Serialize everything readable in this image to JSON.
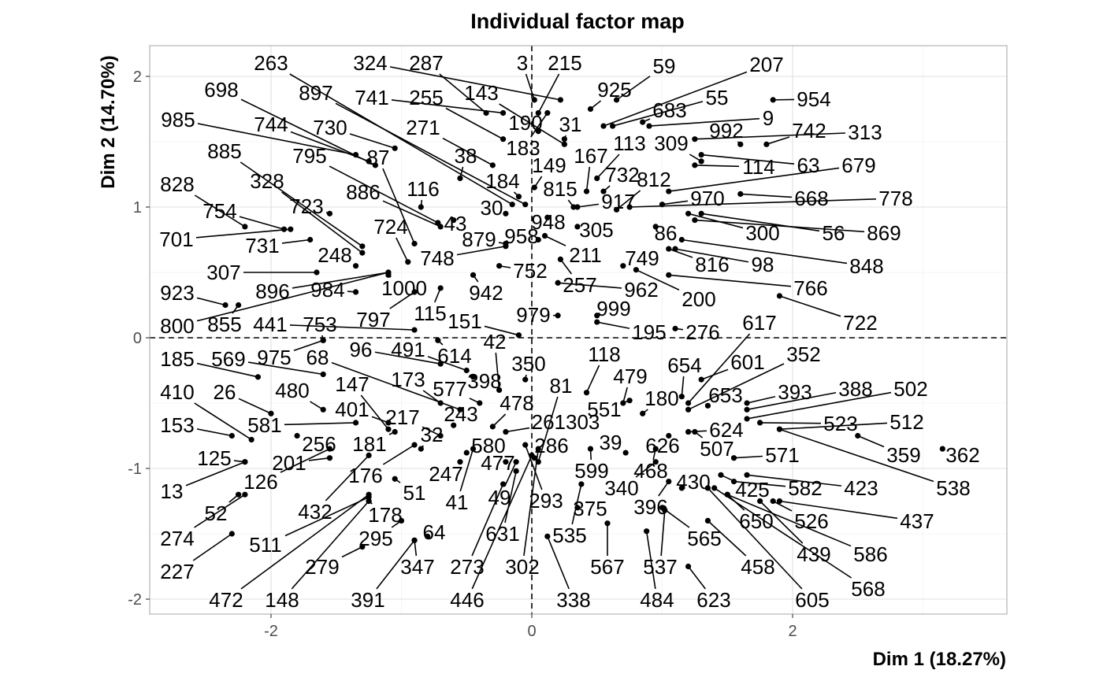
{
  "chart_data": {
    "type": "scatter",
    "title": "Individual factor map",
    "xlabel": "Dim 1 (18.27%)",
    "ylabel": "Dim 2 (14.70%)",
    "xlim": [
      -2.9,
      3.65
    ],
    "ylim": [
      -2.1,
      2.25
    ],
    "xticks": [
      -2,
      0,
      2
    ],
    "yticks": [
      -2,
      -1,
      0,
      1,
      2
    ],
    "reference_lines": {
      "x": 0,
      "y": 0
    },
    "grid": true,
    "points": [
      {
        "label": "263",
        "x": -0.15,
        "y": 1.02
      },
      {
        "label": "324",
        "x": 0.22,
        "y": 1.82
      },
      {
        "label": "287",
        "x": -0.35,
        "y": 1.72
      },
      {
        "label": "3",
        "x": 0.02,
        "y": 1.82
      },
      {
        "label": "215",
        "x": 0.05,
        "y": 1.72
      },
      {
        "label": "59",
        "x": 0.65,
        "y": 1.82
      },
      {
        "label": "207",
        "x": 0.55,
        "y": 1.62
      },
      {
        "label": "698",
        "x": -1.2,
        "y": 1.32
      },
      {
        "label": "897",
        "x": -0.05,
        "y": 1.02
      },
      {
        "label": "741",
        "x": -0.22,
        "y": 1.72
      },
      {
        "label": "255",
        "x": -0.22,
        "y": 1.52
      },
      {
        "label": "143",
        "x": 0.25,
        "y": 1.48
      },
      {
        "label": "925",
        "x": 0.45,
        "y": 1.75
      },
      {
        "label": "55",
        "x": 0.62,
        "y": 1.62
      },
      {
        "label": "954",
        "x": 1.85,
        "y": 1.82
      },
      {
        "label": "985",
        "x": -1.35,
        "y": 1.4
      },
      {
        "label": "744",
        "x": -1.25,
        "y": 1.35
      },
      {
        "label": "730",
        "x": -1.05,
        "y": 1.45
      },
      {
        "label": "271",
        "x": -0.3,
        "y": 1.32
      },
      {
        "label": "190",
        "x": 0.05,
        "y": 1.58
      },
      {
        "label": "31",
        "x": 0.25,
        "y": 1.52
      },
      {
        "label": "683",
        "x": 0.85,
        "y": 1.65
      },
      {
        "label": "9",
        "x": 0.9,
        "y": 1.62
      },
      {
        "label": "992",
        "x": 1.6,
        "y": 1.48
      },
      {
        "label": "742",
        "x": 1.8,
        "y": 1.48
      },
      {
        "label": "313",
        "x": 1.25,
        "y": 1.52
      },
      {
        "label": "885",
        "x": -1.3,
        "y": 0.7
      },
      {
        "label": "795",
        "x": -0.72,
        "y": 0.88
      },
      {
        "label": "87",
        "x": -0.9,
        "y": 0.72
      },
      {
        "label": "38",
        "x": -0.55,
        "y": 1.22
      },
      {
        "label": "183",
        "x": 0.12,
        "y": 1.72
      },
      {
        "label": "167",
        "x": 0.42,
        "y": 1.12
      },
      {
        "label": "113",
        "x": 0.5,
        "y": 1.22
      },
      {
        "label": "309",
        "x": 1.3,
        "y": 1.35
      },
      {
        "label": "114",
        "x": 1.25,
        "y": 1.32
      },
      {
        "label": "63",
        "x": 1.3,
        "y": 1.4
      },
      {
        "label": "679",
        "x": 1.05,
        "y": 1.12
      },
      {
        "label": "828",
        "x": -2.2,
        "y": 0.85
      },
      {
        "label": "328",
        "x": -1.3,
        "y": 0.65
      },
      {
        "label": "723",
        "x": -1.55,
        "y": 0.95
      },
      {
        "label": "886",
        "x": -0.7,
        "y": 0.85
      },
      {
        "label": "116",
        "x": -0.85,
        "y": 1.0
      },
      {
        "label": "184",
        "x": -0.1,
        "y": 1.08
      },
      {
        "label": "149",
        "x": 0.02,
        "y": 1.15
      },
      {
        "label": "815",
        "x": 0.32,
        "y": 1.0
      },
      {
        "label": "732",
        "x": 0.55,
        "y": 1.12
      },
      {
        "label": "812",
        "x": 0.65,
        "y": 0.98
      },
      {
        "label": "970",
        "x": 1.0,
        "y": 1.02
      },
      {
        "label": "668",
        "x": 1.6,
        "y": 1.1
      },
      {
        "label": "778",
        "x": 0.75,
        "y": 1.0
      },
      {
        "label": "754",
        "x": -1.9,
        "y": 0.83
      },
      {
        "label": "30",
        "x": -0.2,
        "y": 0.95
      },
      {
        "label": "43",
        "x": -0.6,
        "y": 0.9
      },
      {
        "label": "917",
        "x": 0.35,
        "y": 1.0
      },
      {
        "label": "948",
        "x": 0.12,
        "y": 0.92
      },
      {
        "label": "724",
        "x": -0.95,
        "y": 0.58
      },
      {
        "label": "879",
        "x": -0.2,
        "y": 0.72
      },
      {
        "label": "958",
        "x": 0.05,
        "y": 0.75
      },
      {
        "label": "305",
        "x": 0.35,
        "y": 0.85
      },
      {
        "label": "300",
        "x": 1.2,
        "y": 0.95
      },
      {
        "label": "56",
        "x": 1.3,
        "y": 0.95
      },
      {
        "label": "869",
        "x": 1.25,
        "y": 0.9
      },
      {
        "label": "701",
        "x": -1.85,
        "y": 0.83
      },
      {
        "label": "731",
        "x": -1.7,
        "y": 0.75
      },
      {
        "label": "248",
        "x": -1.35,
        "y": 0.55
      },
      {
        "label": "748",
        "x": -0.2,
        "y": 0.7
      },
      {
        "label": "86",
        "x": 0.95,
        "y": 0.85
      },
      {
        "label": "211",
        "x": 0.1,
        "y": 0.78
      },
      {
        "label": "749",
        "x": 0.7,
        "y": 0.55
      },
      {
        "label": "816",
        "x": 1.05,
        "y": 0.68
      },
      {
        "label": "98",
        "x": 1.1,
        "y": 0.68
      },
      {
        "label": "848",
        "x": 1.15,
        "y": 0.75
      },
      {
        "label": "307",
        "x": -1.65,
        "y": 0.5
      },
      {
        "label": "896",
        "x": -1.1,
        "y": 0.5
      },
      {
        "label": "984",
        "x": -1.35,
        "y": 0.35
      },
      {
        "label": "1000",
        "x": -1.1,
        "y": 0.48
      },
      {
        "label": "752",
        "x": -0.25,
        "y": 0.55
      },
      {
        "label": "942",
        "x": -0.45,
        "y": 0.48
      },
      {
        "label": "257",
        "x": 0.22,
        "y": 0.6
      },
      {
        "label": "962",
        "x": 0.2,
        "y": 0.42
      },
      {
        "label": "200",
        "x": 0.8,
        "y": 0.52
      },
      {
        "label": "766",
        "x": 1.05,
        "y": 0.48
      },
      {
        "label": "722",
        "x": 1.9,
        "y": 0.32
      },
      {
        "label": "923",
        "x": -2.35,
        "y": 0.25
      },
      {
        "label": "800",
        "x": -1.1,
        "y": 0.5
      },
      {
        "label": "855",
        "x": -2.25,
        "y": 0.25
      },
      {
        "label": "441",
        "x": -0.9,
        "y": 0.06
      },
      {
        "label": "753",
        "x": -1.6,
        "y": -0.02
      },
      {
        "label": "797",
        "x": -0.9,
        "y": 0.35
      },
      {
        "label": "115",
        "x": -0.7,
        "y": 0.38
      },
      {
        "label": "151",
        "x": -0.1,
        "y": 0.02
      },
      {
        "label": "979",
        "x": 0.2,
        "y": 0.17
      },
      {
        "label": "999",
        "x": 0.5,
        "y": 0.17
      },
      {
        "label": "195",
        "x": 0.5,
        "y": 0.12
      },
      {
        "label": "276",
        "x": 1.1,
        "y": 0.07
      },
      {
        "label": "617",
        "x": 1.2,
        "y": -0.5
      },
      {
        "label": "185",
        "x": -2.1,
        "y": -0.3
      },
      {
        "label": "569",
        "x": -1.6,
        "y": -0.28
      },
      {
        "label": "975",
        "x": -1.6,
        "y": -0.02
      },
      {
        "label": "68",
        "x": -0.55,
        "y": -0.55
      },
      {
        "label": "96",
        "x": -0.7,
        "y": -0.2
      },
      {
        "label": "491",
        "x": -0.5,
        "y": -0.25
      },
      {
        "label": "614",
        "x": -0.72,
        "y": -0.02
      },
      {
        "label": "42",
        "x": -0.25,
        "y": -0.4
      },
      {
        "label": "118",
        "x": 0.42,
        "y": -0.42
      },
      {
        "label": "479",
        "x": 0.7,
        "y": -0.5
      },
      {
        "label": "654",
        "x": 1.15,
        "y": -0.45
      },
      {
        "label": "601",
        "x": 1.3,
        "y": -0.32
      },
      {
        "label": "352",
        "x": 1.2,
        "y": -0.55
      },
      {
        "label": "410",
        "x": -2.15,
        "y": -0.78
      },
      {
        "label": "26",
        "x": -2.0,
        "y": -0.58
      },
      {
        "label": "480",
        "x": -1.6,
        "y": -0.55
      },
      {
        "label": "147",
        "x": -1.1,
        "y": -0.7
      },
      {
        "label": "173",
        "x": -0.7,
        "y": -0.5
      },
      {
        "label": "577",
        "x": -0.4,
        "y": -0.5
      },
      {
        "label": "398",
        "x": -0.45,
        "y": -0.3
      },
      {
        "label": "350",
        "x": -0.05,
        "y": -0.32
      },
      {
        "label": "81",
        "x": 0.05,
        "y": -0.95
      },
      {
        "label": "551",
        "x": 0.75,
        "y": -0.48
      },
      {
        "label": "180",
        "x": 0.85,
        "y": -0.58
      },
      {
        "label": "653",
        "x": 1.35,
        "y": -0.52
      },
      {
        "label": "393",
        "x": 1.65,
        "y": -0.5
      },
      {
        "label": "388",
        "x": 1.65,
        "y": -0.55
      },
      {
        "label": "502",
        "x": 1.65,
        "y": -0.62
      },
      {
        "label": "153",
        "x": -2.3,
        "y": -0.75
      },
      {
        "label": "581",
        "x": -1.35,
        "y": -0.65
      },
      {
        "label": "401",
        "x": -1.1,
        "y": -0.65
      },
      {
        "label": "217",
        "x": -0.7,
        "y": -0.75
      },
      {
        "label": "243",
        "x": -0.6,
        "y": -0.67
      },
      {
        "label": "478",
        "x": -0.3,
        "y": -0.68
      },
      {
        "label": "261303",
        "x": -0.2,
        "y": -0.72
      },
      {
        "label": "624",
        "x": 1.2,
        "y": -0.72
      },
      {
        "label": "523",
        "x": 1.75,
        "y": -0.65
      },
      {
        "label": "512",
        "x": 1.9,
        "y": -0.7
      },
      {
        "label": "32",
        "x": -0.85,
        "y": -0.85
      },
      {
        "label": "580",
        "x": -0.5,
        "y": -0.88
      },
      {
        "label": "286",
        "x": 0.02,
        "y": -0.92
      },
      {
        "label": "39",
        "x": 0.72,
        "y": -0.88
      },
      {
        "label": "626",
        "x": 1.05,
        "y": -0.75
      },
      {
        "label": "507",
        "x": 1.25,
        "y": -0.72
      },
      {
        "label": "571",
        "x": 1.55,
        "y": -0.92
      },
      {
        "label": "359",
        "x": 2.5,
        "y": -0.75
      },
      {
        "label": "362",
        "x": 3.15,
        "y": -0.85
      },
      {
        "label": "125",
        "x": -2.2,
        "y": -0.95
      },
      {
        "label": "256",
        "x": -1.8,
        "y": -0.75
      },
      {
        "label": "181",
        "x": -1.05,
        "y": -0.72
      },
      {
        "label": "201",
        "x": -1.55,
        "y": -0.92
      },
      {
        "label": "247",
        "x": -0.55,
        "y": -0.95
      },
      {
        "label": "477",
        "x": -0.2,
        "y": -0.95
      },
      {
        "label": "599",
        "x": 0.45,
        "y": -0.85
      },
      {
        "label": "468",
        "x": 0.95,
        "y": -0.85
      },
      {
        "label": "423",
        "x": 1.65,
        "y": -1.05
      },
      {
        "label": "538",
        "x": 1.9,
        "y": -0.7
      },
      {
        "label": "13",
        "x": -2.2,
        "y": -0.95
      },
      {
        "label": "126",
        "x": -1.55,
        "y": -0.85
      },
      {
        "label": "176",
        "x": -0.9,
        "y": -0.82
      },
      {
        "label": "51",
        "x": -1.05,
        "y": -1.08
      },
      {
        "label": "41",
        "x": -0.45,
        "y": -0.85
      },
      {
        "label": "49",
        "x": -0.12,
        "y": -0.95
      },
      {
        "label": "293",
        "x": -0.05,
        "y": -0.82
      },
      {
        "label": "340",
        "x": 0.95,
        "y": -0.95
      },
      {
        "label": "396",
        "x": 1.05,
        "y": -1.1
      },
      {
        "label": "430",
        "x": 1.15,
        "y": -1.15
      },
      {
        "label": "425",
        "x": 1.45,
        "y": -1.05
      },
      {
        "label": "582",
        "x": 1.55,
        "y": -1.1
      },
      {
        "label": "52",
        "x": -2.25,
        "y": -1.2
      },
      {
        "label": "432",
        "x": -1.25,
        "y": -0.9
      },
      {
        "label": "178",
        "x": -1.25,
        "y": -1.25
      },
      {
        "label": "375",
        "x": 0.35,
        "y": -1.3
      },
      {
        "label": "526",
        "x": 1.85,
        "y": -1.25
      },
      {
        "label": "437",
        "x": 1.9,
        "y": -1.25
      },
      {
        "label": "274",
        "x": -2.2,
        "y": -1.2
      },
      {
        "label": "511",
        "x": -1.25,
        "y": -1.22
      },
      {
        "label": "295",
        "x": -1.0,
        "y": -1.4
      },
      {
        "label": "64",
        "x": -0.8,
        "y": -1.52
      },
      {
        "label": "631",
        "x": -0.12,
        "y": -1.02
      },
      {
        "label": "535",
        "x": 0.38,
        "y": -1.12
      },
      {
        "label": "565",
        "x": 1.0,
        "y": -1.3
      },
      {
        "label": "650",
        "x": 1.5,
        "y": -1.2
      },
      {
        "label": "439",
        "x": 1.75,
        "y": -1.25
      },
      {
        "label": "586",
        "x": 1.5,
        "y": -1.2
      },
      {
        "label": "227",
        "x": -2.3,
        "y": -1.5
      },
      {
        "label": "279",
        "x": -1.3,
        "y": -1.6
      },
      {
        "label": "347",
        "x": -0.9,
        "y": -1.55
      },
      {
        "label": "273",
        "x": -0.22,
        "y": -1.12
      },
      {
        "label": "302",
        "x": 0.05,
        "y": -0.85
      },
      {
        "label": "567",
        "x": 0.58,
        "y": -1.42
      },
      {
        "label": "537",
        "x": 1.02,
        "y": -1.32
      },
      {
        "label": "458",
        "x": 1.35,
        "y": -1.4
      },
      {
        "label": "568",
        "x": 1.4,
        "y": -1.15
      },
      {
        "label": "472",
        "x": -1.25,
        "y": -1.2
      },
      {
        "label": "148",
        "x": -1.25,
        "y": -1.25
      },
      {
        "label": "391",
        "x": -0.9,
        "y": -1.55
      },
      {
        "label": "446",
        "x": 0.0,
        "y": -0.9
      },
      {
        "label": "338",
        "x": 0.12,
        "y": -1.52
      },
      {
        "label": "484",
        "x": 0.88,
        "y": -1.48
      },
      {
        "label": "623",
        "x": 1.2,
        "y": -1.75
      },
      {
        "label": "605",
        "x": 1.35,
        "y": -1.15
      }
    ]
  }
}
